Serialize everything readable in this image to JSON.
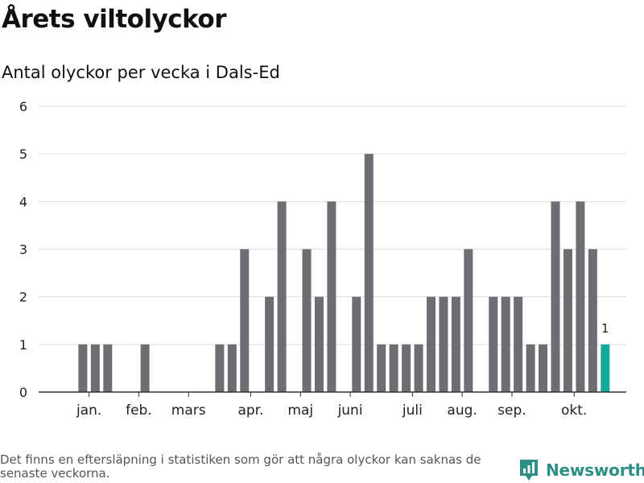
{
  "header": {
    "title": "Årets viltolyckor",
    "subtitle": "Antal olyckor per vecka i Dals-Ed"
  },
  "footer": {
    "note": "Det finns en eftersläpning i statistiken som gör att några olyckor kan saknas de senaste veckorna.",
    "brand": "Newsworthy"
  },
  "colors": {
    "bar": "#6e6d72",
    "highlight": "#12a89a",
    "grid": "#dddddd",
    "axis": "#333333",
    "brand": "#2d8f85"
  },
  "chart_data": {
    "type": "bar",
    "title": "Årets viltolyckor",
    "subtitle": "Antal olyckor per vecka i Dals-Ed",
    "xlabel": "",
    "ylabel": "",
    "ylim": [
      0,
      6
    ],
    "yticks": [
      0,
      1,
      2,
      3,
      4,
      5,
      6
    ],
    "grid": true,
    "x_unit": "week",
    "weeks": [
      1,
      2,
      3,
      4,
      5,
      6,
      7,
      8,
      9,
      10,
      11,
      12,
      13,
      14,
      15,
      16,
      17,
      18,
      19,
      20,
      21,
      22,
      23,
      24,
      25,
      26,
      27,
      28,
      29,
      30,
      31,
      32,
      33,
      34,
      35,
      36,
      37,
      38,
      39,
      40,
      41,
      42,
      43,
      44,
      45
    ],
    "values": [
      0,
      1,
      1,
      1,
      0,
      0,
      1,
      0,
      0,
      0,
      0,
      0,
      1,
      1,
      3,
      0,
      2,
      4,
      0,
      3,
      2,
      4,
      0,
      2,
      5,
      1,
      1,
      1,
      1,
      2,
      2,
      2,
      3,
      0,
      2,
      2,
      2,
      1,
      1,
      4,
      3,
      4,
      3,
      1,
      0
    ],
    "highlight_week": 44,
    "highlight_label": "1",
    "month_labels": [
      {
        "label": "jan.",
        "week": 2.5
      },
      {
        "label": "feb.",
        "week": 6.5
      },
      {
        "label": "mars",
        "week": 10.5
      },
      {
        "label": "apr.",
        "week": 15.5
      },
      {
        "label": "maj",
        "week": 19.5
      },
      {
        "label": "juni",
        "week": 23.5
      },
      {
        "label": "juli",
        "week": 28.5
      },
      {
        "label": "aug.",
        "week": 32.5
      },
      {
        "label": "sep.",
        "week": 36.5
      },
      {
        "label": "okt.",
        "week": 41.5
      }
    ]
  }
}
